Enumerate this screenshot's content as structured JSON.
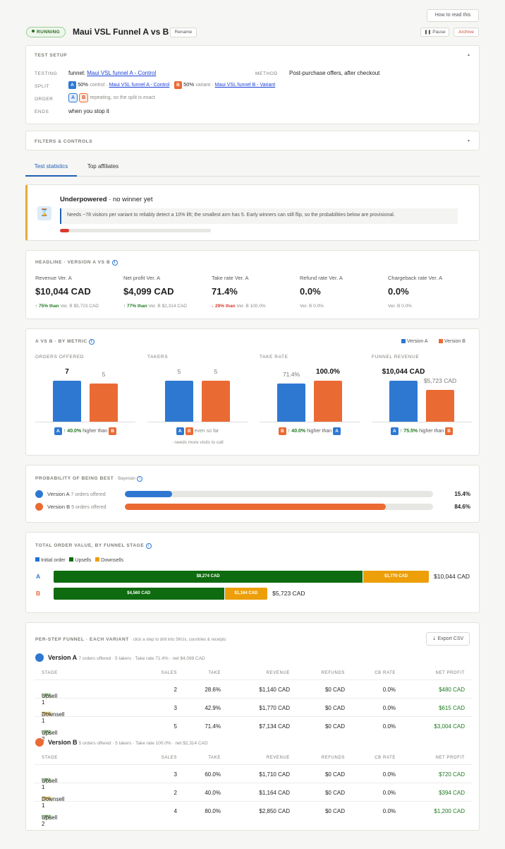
{
  "header": {
    "how_to_read": "How to read this",
    "status": "RUNNING",
    "title": "Maui VSL Funnel A vs B",
    "rename": "Rename",
    "pause": "Pause",
    "archive": "Archive"
  },
  "setup": {
    "section": "TEST SETUP",
    "testing_label": "TESTING",
    "testing_prefix": "funnel:",
    "testing_link": "Maui VSL funnel A - Control",
    "method_label": "METHOD",
    "method_value": "Post-purchase offers, after checkout",
    "split_label": "SPLIT",
    "split_a_pct": "50%",
    "split_a_text": "control ·",
    "split_a_link": "Maui VSL funnel A - Control",
    "split_b_pct": "50%",
    "split_b_text": "variant ·",
    "split_b_link": "Maui VSL funnel B - Variant",
    "order_label": "ORDER",
    "order_text": "repeating, so the split is exact",
    "ends_label": "ENDS",
    "ends_value": "when you stop it"
  },
  "filters": {
    "section": "FILTERS & CONTROLS"
  },
  "tabs": [
    {
      "label": "Test statistics"
    },
    {
      "label": "Top affiliates"
    }
  ],
  "alert": {
    "title_bold": "Underpowered",
    "title_rest": "· no winner yet",
    "text": "Needs ~78 visitors per variant to reliably detect a 10% lift; the smallest arm has 5. Early winners can still flip, so the probabilities below are provisional.",
    "progress": 0.06
  },
  "headline": {
    "section": "HEADLINE · VERSION A VS B",
    "metrics": [
      {
        "label": "Revenue Ver. A",
        "value": "$10,044 CAD",
        "delta": "↑ 75% than",
        "ref": "Ver. B $5,723 CAD",
        "dir": "up"
      },
      {
        "label": "Net profit Ver. A",
        "value": "$4,099 CAD",
        "delta": "↑ 77% than",
        "ref": "Ver. B $2,314 CAD",
        "dir": "up"
      },
      {
        "label": "Take rate Ver. A",
        "value": "71.4%",
        "delta": "↓ 29% than",
        "ref": "Ver. B 100.0%",
        "dir": "down"
      },
      {
        "label": "Refund rate Ver. A",
        "value": "0.0%",
        "delta": "",
        "ref": "Ver. B 0.0%",
        "dir": ""
      },
      {
        "label": "Chargeback rate Ver. A",
        "value": "0.0%",
        "delta": "",
        "ref": "Ver. B 0.0%",
        "dir": ""
      }
    ]
  },
  "avsb": {
    "section": "A VS B · BY METRIC",
    "legend_a": "Version A",
    "legend_b": "Version B",
    "colors": {
      "a": "#2e78d2",
      "b": "#ea6a33"
    },
    "groups": [
      {
        "title": "ORDERS OFFERED",
        "a_label": "7",
        "b_label": "5",
        "a_frac": 1.0,
        "b_frac": 0.93,
        "a_strong": true,
        "b_strong": false,
        "note_pct": "↑ 40.0%",
        "note_text": "higher than",
        "extra": ""
      },
      {
        "title": "TAKERS",
        "a_label": "5",
        "b_label": "5",
        "a_frac": 1.0,
        "b_frac": 1.0,
        "a_strong": false,
        "b_strong": false,
        "note_pct": "",
        "note_text": "even so far",
        "extra": "· needs more visits to call"
      },
      {
        "title": "TAKE RATE",
        "a_label": "71.4%",
        "b_label": "100.0%",
        "a_frac": 0.93,
        "b_frac": 1.0,
        "a_strong": false,
        "b_strong": true,
        "note_pct": "↑ 40.0%",
        "note_text": "higher than",
        "extra": ""
      },
      {
        "title": "FUNNEL REVENUE",
        "a_label": "$10,044 CAD",
        "b_label": "$5,723 CAD",
        "a_frac": 1.0,
        "b_frac": 0.78,
        "a_strong": true,
        "b_strong": false,
        "note_pct": "↑ 75.5%",
        "note_text": "higher than",
        "extra": ""
      }
    ]
  },
  "prob": {
    "section": "PROBABILITY OF BEING BEST",
    "sub": "· Bayesian",
    "rows": [
      {
        "name": "Version A",
        "orders": "7 orders offered",
        "value": 0.154,
        "label": "15.4%"
      },
      {
        "name": "Version B",
        "orders": "5 orders offered",
        "value": 0.846,
        "label": "84.6%"
      }
    ]
  },
  "stage": {
    "section": "TOTAL ORDER VALUE, BY FUNNEL STAGE",
    "legend": [
      "Initial order",
      "Upsells",
      "Downsells"
    ],
    "colors": {
      "initial": "#1f6fd6",
      "upsell": "#0f6b0f",
      "downsell": "#ec9f09"
    },
    "rows": [
      {
        "key": "A",
        "upsell": 8274,
        "upsell_label": "$8,274 CAD",
        "downsell": 1770,
        "downsell_label": "$1,770 CAD",
        "total": "$10,044 CAD"
      },
      {
        "key": "B",
        "upsell": 4560,
        "upsell_label": "$4,560 CAD",
        "downsell": 1164,
        "downsell_label": "$1,164 CAD",
        "total": "$5,723 CAD"
      }
    ]
  },
  "perstep": {
    "section": "PER-STEP FUNNEL · EACH VARIANT",
    "sub": "· click a step to drill into SKUs, countries & receipts",
    "export": "Export CSV",
    "columns": [
      "STAGE",
      "SALES",
      "TAKE",
      "REVENUE",
      "REFUNDS",
      "CB RATE",
      "NET PROFIT"
    ],
    "variants": [
      {
        "name": "Version A",
        "summary": "7 orders offered · 5 takers · Take rate 71.4% · net $4,099 CAD",
        "rows": [
          {
            "tag": "UP1",
            "step": "Upsell 1",
            "sales": "2",
            "take": "28.6%",
            "revenue": "$1,140 CAD",
            "refunds": "$0 CAD",
            "cb": "0.0%",
            "profit": "$480 CAD"
          },
          {
            "tag": "DN1",
            "step": "Downsell 1",
            "sales": "3",
            "take": "42.9%",
            "revenue": "$1,770 CAD",
            "refunds": "$0 CAD",
            "cb": "0.0%",
            "profit": "$615 CAD"
          },
          {
            "tag": "UP2",
            "step": "Upsell 2",
            "sales": "5",
            "take": "71.4%",
            "revenue": "$7,134 CAD",
            "refunds": "$0 CAD",
            "cb": "0.0%",
            "profit": "$3,004 CAD"
          }
        ]
      },
      {
        "name": "Version B",
        "summary": "5 orders offered · 5 takers · Take rate 100.0% · net $2,314 CAD",
        "rows": [
          {
            "tag": "UP1",
            "step": "Upsell 1",
            "sales": "3",
            "take": "60.0%",
            "revenue": "$1,710 CAD",
            "refunds": "$0 CAD",
            "cb": "0.0%",
            "profit": "$720 CAD"
          },
          {
            "tag": "DN1",
            "step": "Downsell 1",
            "sales": "2",
            "take": "40.0%",
            "revenue": "$1,164 CAD",
            "refunds": "$0 CAD",
            "cb": "0.0%",
            "profit": "$394 CAD"
          },
          {
            "tag": "UP2",
            "step": "Upsell 2",
            "sales": "4",
            "take": "80.0%",
            "revenue": "$2,850 CAD",
            "refunds": "$0 CAD",
            "cb": "0.0%",
            "profit": "$1,200 CAD"
          }
        ]
      }
    ]
  }
}
